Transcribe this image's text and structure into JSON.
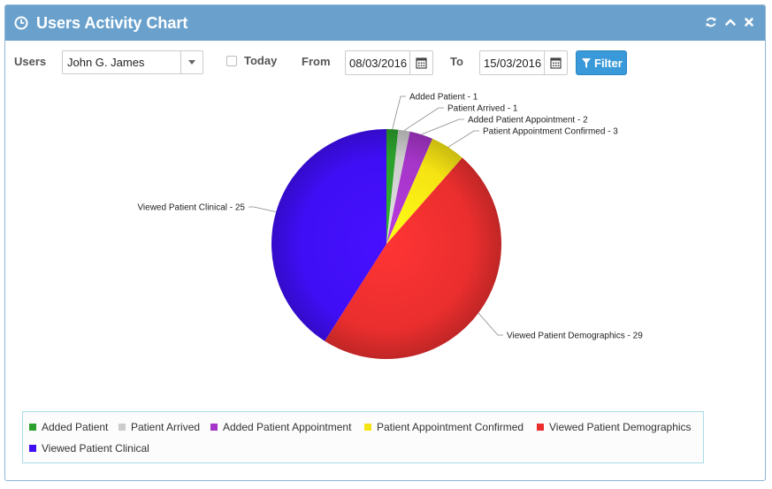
{
  "header": {
    "title": "Users Activity Chart",
    "icons": [
      "clock-icon",
      "refresh-icon",
      "chevron-up-icon",
      "close-icon"
    ]
  },
  "toolbar": {
    "users_label": "Users",
    "user_selected": "John G. James",
    "today_label": "Today",
    "today_checked": false,
    "from_label": "From",
    "from_date": "08/03/2016",
    "to_label": "To",
    "to_date": "15/03/2016",
    "filter_label": "Filter"
  },
  "colors": {
    "header_bg": "#6aa1cc",
    "filter_button": "#3a9ad9"
  },
  "chart_data": {
    "type": "pie",
    "categories": [
      "Added Patient",
      "Patient Arrived",
      "Added Patient Appointment",
      "Patient Appointment Confirmed",
      "Viewed Patient Demographics",
      "Viewed Patient Clinical"
    ],
    "values": [
      1,
      1,
      2,
      3,
      29,
      25
    ],
    "colors": [
      "#2ca02c",
      "#cccccc",
      "#a535c8",
      "#f5e313",
      "#ea2e2e",
      "#3f0ef5"
    ],
    "data_labels": [
      "Added Patient - 1",
      "Patient Arrived - 1",
      "Added Patient Appointment - 2",
      "Patient Appointment Confirmed - 3",
      "Viewed Patient Demographics - 29",
      "Viewed Patient Clinical - 25"
    ],
    "legend_position": "bottom"
  }
}
